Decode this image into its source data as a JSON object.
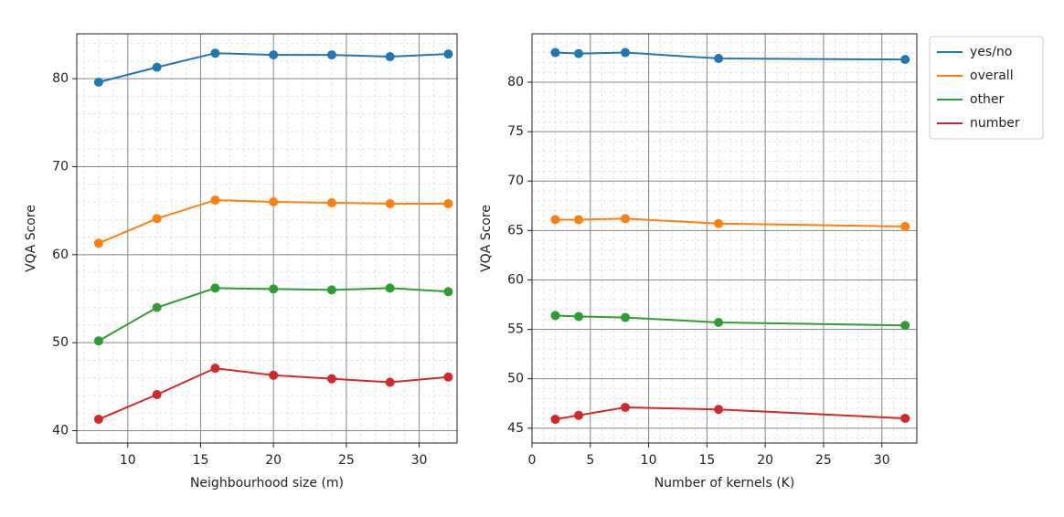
{
  "chart_data": [
    {
      "type": "line",
      "xlabel": "Neighbourhood size (m)",
      "ylabel": "VQA Score",
      "x": [
        8,
        12,
        16,
        20,
        24,
        28,
        32
      ],
      "series": [
        {
          "color": "#1f77b4",
          "values": [
            79.6,
            81.3,
            82.9,
            82.7,
            82.7,
            82.5,
            82.8
          ]
        },
        {
          "color": "#ff7f0e",
          "values": [
            61.3,
            64.1,
            66.2,
            66.0,
            65.9,
            65.8,
            65.8
          ]
        },
        {
          "color": "#2ca02c",
          "values": [
            50.2,
            54.0,
            56.2,
            56.1,
            56.0,
            56.2,
            55.8
          ]
        },
        {
          "color": "#d62728",
          "values": [
            41.3,
            44.1,
            47.1,
            46.3,
            45.9,
            45.5,
            46.1
          ]
        }
      ],
      "xlim": [
        6.5,
        32.6
      ],
      "xticks": [
        10,
        15,
        20,
        25,
        30
      ],
      "ylim": [
        38.6,
        85.1
      ],
      "yticks": [
        40,
        50,
        60,
        70,
        80
      ],
      "grid": true,
      "minor_grid": true
    },
    {
      "type": "line",
      "xlabel": "Number of kernels (K)",
      "ylabel": "VQA Score",
      "x": [
        2,
        4,
        8,
        16,
        32
      ],
      "series": [
        {
          "name": "yes/no",
          "color": "#1f77b4",
          "values": [
            83.0,
            82.9,
            83.0,
            82.4,
            82.3
          ]
        },
        {
          "name": "overall",
          "color": "#ff7f0e",
          "values": [
            66.1,
            66.1,
            66.2,
            65.7,
            65.4
          ]
        },
        {
          "name": "other",
          "color": "#2ca02c",
          "values": [
            56.4,
            56.3,
            56.2,
            55.7,
            55.4
          ]
        },
        {
          "name": "number",
          "color": "#d62728",
          "values": [
            45.9,
            46.3,
            47.1,
            46.9,
            46.0
          ]
        }
      ],
      "xlim": [
        0,
        33
      ],
      "xticks": [
        0,
        5,
        10,
        15,
        20,
        25,
        30
      ],
      "ylim": [
        43.5,
        84.9
      ],
      "yticks": [
        45,
        50,
        55,
        60,
        65,
        70,
        75,
        80
      ],
      "grid": true,
      "minor_grid": true,
      "legend": "outside upper right"
    }
  ]
}
